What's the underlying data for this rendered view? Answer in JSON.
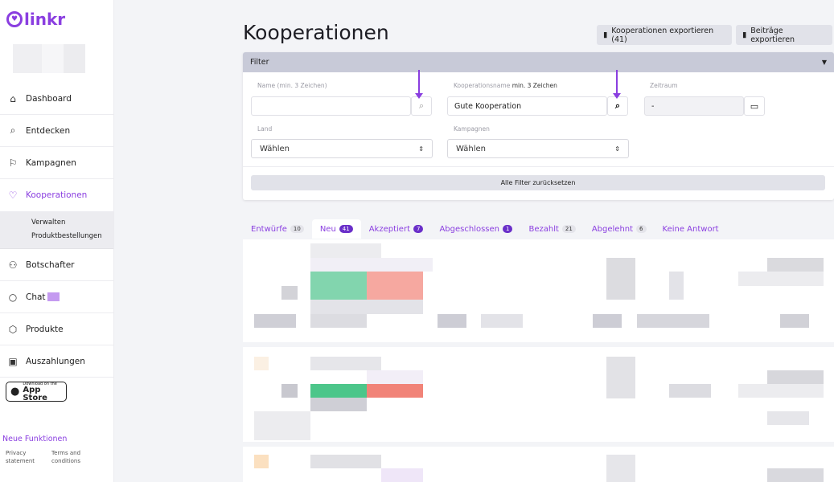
{
  "app": {
    "logo_text": "linkr"
  },
  "sidebar": {
    "items": [
      {
        "label": "Dashboard",
        "icon": "home-icon"
      },
      {
        "label": "Entdecken",
        "icon": "search-icon"
      },
      {
        "label": "Kampagnen",
        "icon": "flag-icon"
      },
      {
        "label": "Kooperationen",
        "icon": "heart-icon"
      },
      {
        "label": "Botschafter",
        "icon": "users-icon"
      },
      {
        "label": "Chat",
        "icon": "chat-icon"
      },
      {
        "label": "Produkte",
        "icon": "box-icon"
      },
      {
        "label": "Auszahlungen",
        "icon": "wallet-icon"
      }
    ],
    "subitems": [
      "Verwalten",
      "Produktbestellungen"
    ],
    "appstore": {
      "small": "Download on the",
      "big": "App Store"
    },
    "news": "Neue Funktionen",
    "privacy": "Privacy statement",
    "terms": "Terms and conditions"
  },
  "page": {
    "title": "Kooperationen",
    "export_coop": "Kooperationen exportieren (41)",
    "export_posts": "Beiträge exportieren"
  },
  "filter": {
    "header": "Filter",
    "name_label": "Name (min. 3 Zeichen)",
    "name_value": "",
    "coop_label_a": "Kooperationsname",
    "coop_label_b": "min. 3 Zeichen",
    "coop_value": "Gute Kooperation",
    "period_label": "Zeitraum",
    "period_value": "-",
    "country_label": "Land",
    "country_value": "Wählen",
    "campaign_label": "Kampagnen",
    "campaign_value": "Wählen",
    "reset": "Alle Filter zurücksetzen"
  },
  "tabs": [
    {
      "label": "Entwürfe",
      "count": "10",
      "dark": false
    },
    {
      "label": "Neu",
      "count": "41",
      "dark": true
    },
    {
      "label": "Akzeptiert",
      "count": "7",
      "dark": true
    },
    {
      "label": "Abgeschlossen",
      "count": "1",
      "dark": true
    },
    {
      "label": "Bezahlt",
      "count": "21",
      "dark": false
    },
    {
      "label": "Abgelehnt",
      "count": "6",
      "dark": false
    },
    {
      "label": "Keine Antwort",
      "count": "",
      "dark": false
    }
  ],
  "colors": {
    "accent": "#8a3ee0",
    "green": "#5fcf9b",
    "red": "#f38a80"
  }
}
